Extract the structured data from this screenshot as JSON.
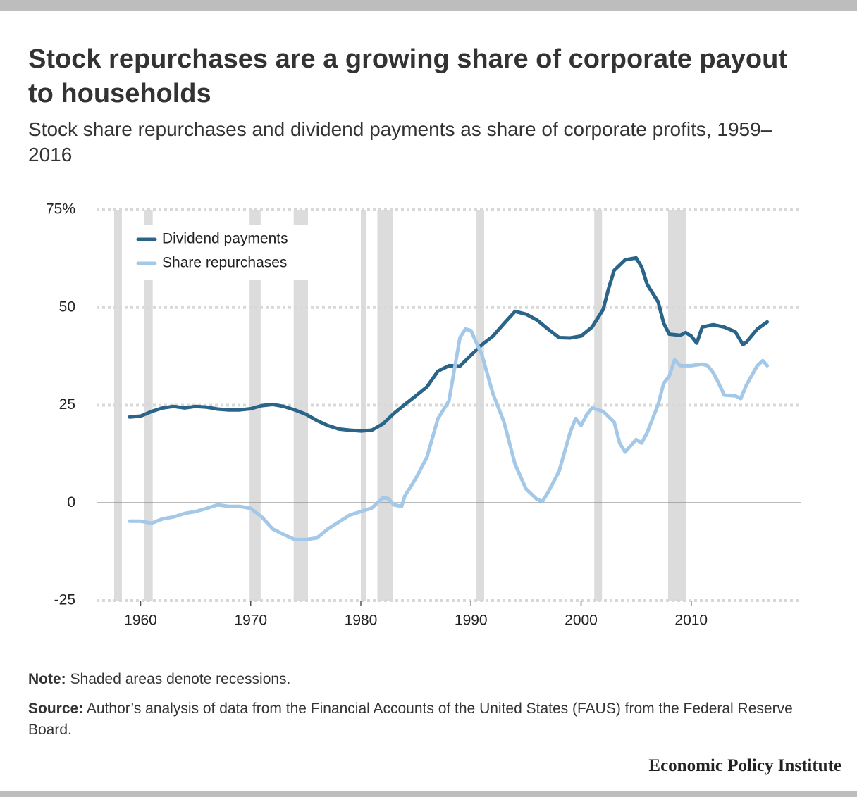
{
  "chart_data": {
    "type": "line",
    "title": "Stock repurchases are a growing share of corporate payout to households",
    "subtitle": "Stock share repurchases and dividend payments as share of corporate profits, 1959–2016",
    "note_label": "Note:",
    "note": "Shaded areas denote recessions.",
    "source_label": "Source:",
    "source": "Author’s analysis of data from the Financial Accounts of the United States (FAUS) from the Federal Reserve Board.",
    "brand": "Economic Policy Institute",
    "xlim": [
      1956,
      2020
    ],
    "xticks": [
      1960,
      1970,
      1980,
      1990,
      2000,
      2010
    ],
    "ylim": [
      -25,
      75
    ],
    "yticks": [
      -25,
      0,
      25,
      50,
      {
        "value": 75,
        "label": "75%"
      }
    ],
    "grid": true,
    "legend": "top-left",
    "recession_color": "#dcdcdc",
    "recessions": [
      [
        1957.6,
        1958.3
      ],
      [
        1960.3,
        1961.1
      ],
      [
        1969.9,
        1970.9
      ],
      [
        1973.9,
        1975.2
      ],
      [
        1980.0,
        1980.5
      ],
      [
        1981.5,
        1982.9
      ],
      [
        1990.5,
        1991.2
      ],
      [
        2001.2,
        2001.9
      ],
      [
        2007.9,
        2009.5
      ]
    ],
    "series": [
      {
        "name": "Dividend payments",
        "color": "#2a6589",
        "x": [
          1959,
          1960,
          1961,
          1962,
          1963,
          1964,
          1965,
          1966,
          1967,
          1968,
          1969,
          1970,
          1971,
          1972,
          1973,
          1974,
          1975,
          1976,
          1977,
          1978,
          1979,
          1980,
          1981,
          1982,
          1983,
          1984,
          1985,
          1986,
          1987,
          1988,
          1989,
          1990,
          1991,
          1992,
          1993,
          1994,
          1995,
          1996,
          1997,
          1998,
          1999,
          2000,
          2001,
          2002,
          2002.5,
          2003,
          2004,
          2005,
          2005.5,
          2006,
          2007,
          2007.5,
          2008,
          2009,
          2009.5,
          2010,
          2010.5,
          2011,
          2012,
          2013,
          2014,
          2014.7,
          2015,
          2016,
          2016.9
        ],
        "values": [
          22.0,
          22.2,
          23.4,
          24.3,
          24.7,
          24.3,
          24.7,
          24.5,
          24.0,
          23.8,
          23.8,
          24.1,
          24.9,
          25.2,
          24.7,
          23.8,
          22.7,
          21.1,
          19.8,
          18.9,
          18.6,
          18.4,
          18.6,
          20.2,
          22.9,
          25.2,
          27.4,
          29.7,
          33.7,
          35.1,
          35.0,
          37.8,
          40.5,
          42.7,
          45.9,
          49.0,
          48.3,
          46.8,
          44.5,
          42.3,
          42.2,
          42.7,
          45.0,
          49.5,
          54.9,
          59.5,
          62.2,
          62.7,
          60.4,
          55.9,
          51.4,
          46.0,
          43.2,
          42.9,
          43.6,
          42.7,
          40.9,
          45.0,
          45.6,
          45.0,
          43.8,
          40.5,
          41.1,
          44.5,
          46.3
        ]
      },
      {
        "name": "Share repurchases",
        "color": "#a3c8e8",
        "x": [
          1959,
          1960,
          1961,
          1962,
          1963,
          1964,
          1965,
          1966,
          1967,
          1968,
          1969,
          1970,
          1971,
          1972,
          1973,
          1974,
          1975,
          1976,
          1977,
          1978,
          1979,
          1980,
          1981,
          1982,
          1982.5,
          1983,
          1983.7,
          1984,
          1985,
          1986,
          1987,
          1988,
          1989,
          1989.5,
          1990,
          1991,
          1992,
          1993,
          1994,
          1995,
          1996,
          1996.5,
          1997,
          1998,
          1999,
          1999.5,
          2000,
          2000.5,
          2001,
          2002,
          2003,
          2003.5,
          2004,
          2005,
          2005.5,
          2006,
          2007,
          2007.5,
          2008,
          2008.5,
          2009,
          2010,
          2011,
          2011.5,
          2012,
          2012.5,
          2013,
          2014,
          2014.5,
          2015,
          2016,
          2016.5,
          2016.9
        ],
        "values": [
          -4.7,
          -4.7,
          -5.2,
          -4.1,
          -3.6,
          -2.7,
          -2.2,
          -1.4,
          -0.5,
          -0.9,
          -0.9,
          -1.4,
          -3.6,
          -6.7,
          -8.1,
          -9.4,
          -9.4,
          -9.0,
          -6.7,
          -4.9,
          -3.1,
          -2.2,
          -1.3,
          1.3,
          1.1,
          -0.5,
          -0.9,
          1.8,
          6.3,
          11.7,
          21.6,
          26.1,
          42.3,
          44.5,
          44.1,
          37.8,
          27.9,
          20.7,
          9.9,
          3.6,
          0.9,
          0.4,
          2.7,
          8.1,
          18.0,
          21.6,
          19.8,
          22.5,
          24.3,
          23.4,
          20.7,
          15.3,
          13.0,
          16.2,
          15.3,
          18.0,
          25.2,
          30.6,
          32.4,
          36.6,
          35.1,
          35.1,
          35.5,
          35.1,
          33.3,
          30.6,
          27.6,
          27.4,
          26.7,
          30.1,
          35.1,
          36.4,
          35.1
        ]
      }
    ]
  }
}
